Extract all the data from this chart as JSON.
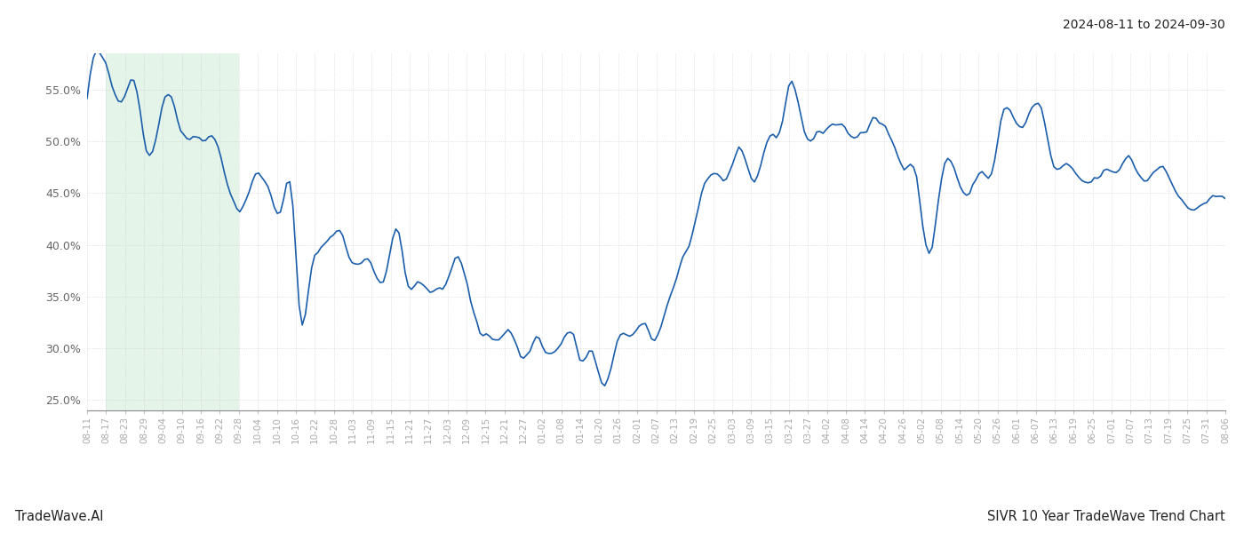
{
  "title_right": "2024-08-11 to 2024-09-30",
  "footer_left": "TradeWave.AI",
  "footer_right": "SIVR 10 Year TradeWave Trend Chart",
  "line_color": "#1b5eab",
  "line_width": 1.2,
  "shade_color": "#d4edda",
  "shade_alpha": 0.6,
  "background_color": "#ffffff",
  "grid_color": "#cccccc",
  "ylim": [
    24.0,
    58.5
  ],
  "yticks": [
    25.0,
    30.0,
    35.0,
    40.0,
    45.0,
    50.0,
    55.0
  ],
  "x_labels": [
    "08-11",
    "08-17",
    "08-23",
    "08-29",
    "09-04",
    "09-10",
    "09-16",
    "09-22",
    "09-28",
    "10-04",
    "10-10",
    "10-16",
    "10-22",
    "10-28",
    "11-03",
    "11-09",
    "11-15",
    "11-21",
    "11-27",
    "12-03",
    "12-09",
    "12-15",
    "12-21",
    "12-27",
    "01-02",
    "01-08",
    "01-14",
    "01-20",
    "01-26",
    "02-01",
    "02-07",
    "02-13",
    "02-19",
    "02-25",
    "03-03",
    "03-09",
    "03-15",
    "03-21",
    "03-27",
    "04-02",
    "04-08",
    "04-14",
    "04-20",
    "04-26",
    "05-02",
    "05-08",
    "05-14",
    "05-20",
    "05-26",
    "06-01",
    "06-07",
    "06-13",
    "06-19",
    "06-25",
    "07-01",
    "07-07",
    "07-13",
    "07-19",
    "07-25",
    "07-31",
    "08-06"
  ],
  "shade_start_label": "08-17",
  "shade_end_label": "09-28",
  "n_points": 366,
  "anchor_x": [
    0,
    6,
    12,
    14,
    16,
    20,
    24,
    28,
    30,
    34,
    38,
    42,
    48,
    54,
    58,
    62,
    66,
    68,
    72,
    76,
    80,
    86,
    90,
    92,
    96,
    100,
    102,
    106,
    108,
    112,
    114,
    118,
    122,
    126,
    128,
    132,
    136,
    140,
    144,
    148,
    152,
    156,
    158,
    162,
    166,
    168,
    170,
    174,
    178,
    182,
    184,
    186,
    190,
    194,
    198,
    202,
    206,
    210,
    214,
    218,
    222,
    226,
    230,
    234,
    238,
    242,
    246,
    250,
    254,
    258,
    262,
    266,
    270,
    274,
    278,
    282,
    286,
    290,
    294,
    298,
    302,
    306,
    310,
    314,
    318,
    322,
    326,
    330,
    334,
    338,
    342,
    346,
    350,
    354,
    358,
    362,
    365
  ],
  "anchor_y": [
    54.0,
    57.2,
    54.5,
    56.5,
    55.0,
    48.5,
    53.5,
    53.5,
    51.0,
    50.5,
    50.5,
    49.5,
    43.5,
    46.5,
    45.5,
    43.5,
    43.5,
    34.0,
    37.5,
    40.0,
    41.5,
    38.0,
    38.5,
    37.5,
    37.5,
    41.5,
    37.5,
    36.0,
    36.0,
    35.5,
    35.5,
    38.5,
    36.0,
    31.5,
    31.5,
    31.0,
    31.5,
    29.0,
    31.0,
    29.5,
    30.5,
    31.0,
    29.0,
    29.5,
    26.0,
    28.0,
    31.0,
    31.0,
    32.0,
    31.0,
    32.0,
    34.0,
    38.0,
    41.0,
    46.0,
    46.5,
    47.0,
    48.5,
    46.0,
    50.0,
    51.0,
    55.8,
    51.0,
    50.5,
    51.5,
    51.5,
    50.5,
    51.0,
    52.0,
    50.0,
    48.0,
    46.5,
    39.0,
    46.5,
    47.5,
    44.5,
    47.0,
    47.0,
    53.0,
    51.5,
    52.5,
    53.0,
    47.5,
    47.5,
    46.5,
    46.0,
    47.0,
    47.0,
    48.5,
    46.5,
    47.0,
    47.5,
    44.5,
    43.5,
    44.0,
    44.5,
    44.5
  ]
}
